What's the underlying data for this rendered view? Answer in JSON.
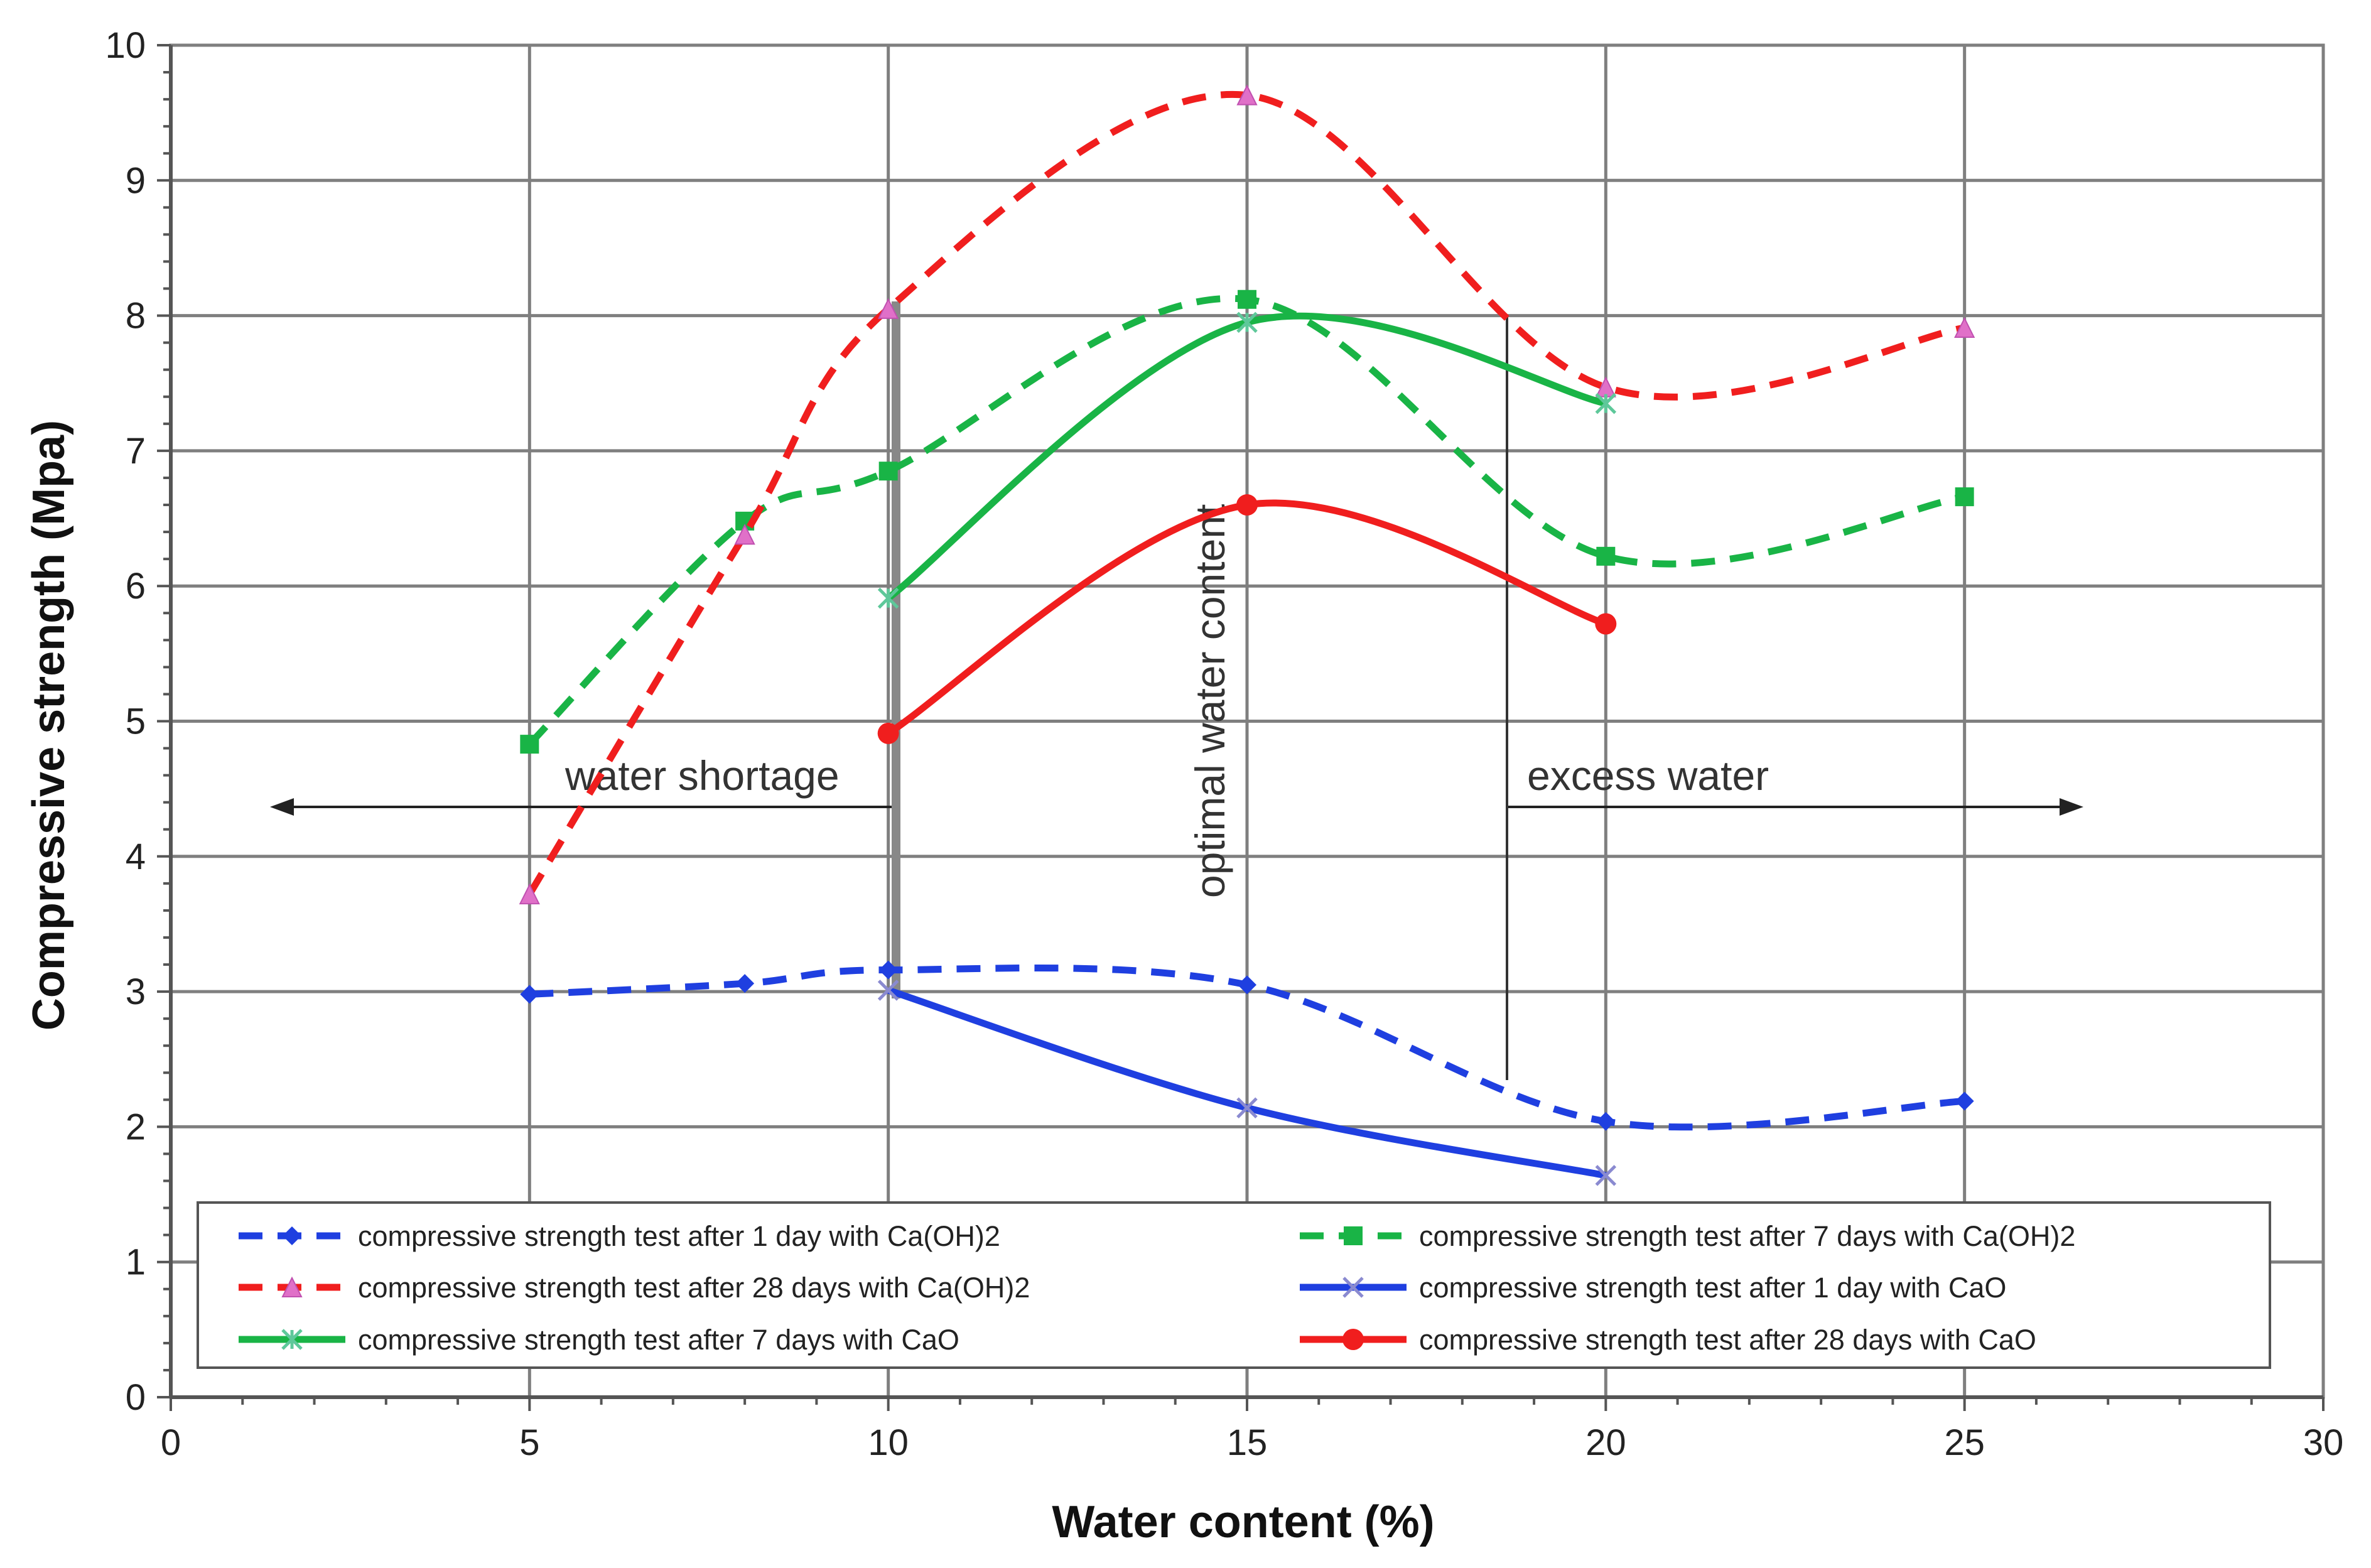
{
  "chart_data": {
    "type": "line",
    "title": "",
    "xlabel": "Water content (%)",
    "ylabel": "Compressive strength (Mpa)",
    "xlim": [
      0,
      30
    ],
    "ylim": [
      0,
      10
    ],
    "xticks": [
      0,
      5,
      10,
      15,
      20,
      25,
      30
    ],
    "yticks": [
      0,
      1,
      2,
      3,
      4,
      5,
      6,
      7,
      8,
      9,
      10
    ],
    "grid": "major gridlines at x=5..25 and every y unit",
    "legend_position": "bottom",
    "series": [
      {
        "name": "compressive strength test after 1 day with Ca(OH)2",
        "color": "#1f3fe0",
        "dash": true,
        "marker": "diamond",
        "x": [
          5,
          8,
          10,
          15,
          20,
          25
        ],
        "y": [
          2.98,
          3.06,
          3.16,
          3.05,
          2.04,
          2.19
        ]
      },
      {
        "name": "compressive strength test after 7 days with Ca(OH)2",
        "color": "#19b446",
        "dash": true,
        "marker": "square",
        "x": [
          5,
          8,
          10,
          15,
          20,
          25
        ],
        "y": [
          4.83,
          6.48,
          6.85,
          8.12,
          6.22,
          6.66
        ]
      },
      {
        "name": "compressive strength test after 28 days with Ca(OH)2",
        "color": "#f01e1e",
        "dash": true,
        "marker": "triangle",
        "x": [
          5,
          8,
          10,
          15,
          20,
          25
        ],
        "y": [
          3.72,
          6.38,
          8.05,
          9.63,
          7.47,
          7.91
        ]
      },
      {
        "name": "compressive strength test after 1 day with CaO",
        "color": "#1f3fe0",
        "dash": false,
        "marker": "x",
        "x": [
          10,
          15,
          20
        ],
        "y": [
          3.01,
          2.14,
          1.64
        ]
      },
      {
        "name": "compressive strength test after 7 days with CaO",
        "color": "#19b446",
        "dash": false,
        "marker": "star",
        "x": [
          10,
          15,
          20
        ],
        "y": [
          5.91,
          7.95,
          7.35
        ]
      },
      {
        "name": "compressive strength test after 28 days with CaO",
        "color": "#f01e1e",
        "dash": false,
        "marker": "circle",
        "x": [
          10,
          15,
          20
        ],
        "y": [
          4.91,
          6.6,
          5.72
        ]
      }
    ],
    "annotations": {
      "water_shortage": "water shortage",
      "optimal": "optimal water content",
      "excess": "excess water"
    }
  }
}
